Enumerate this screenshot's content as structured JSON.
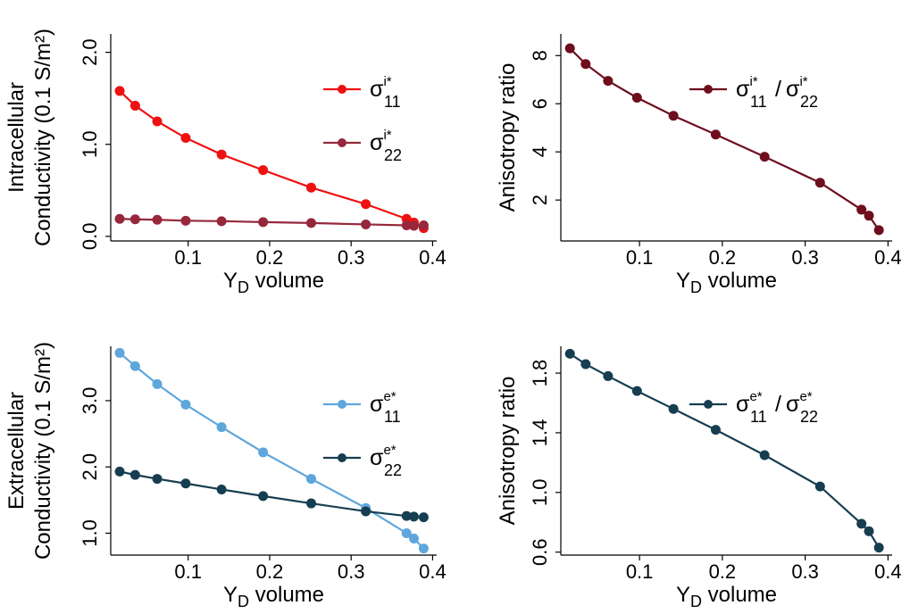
{
  "chart_data": [
    {
      "id": "panel-intracellular-conductivity",
      "type": "line",
      "xlabel": {
        "main": "Y",
        "sub": "D",
        "rest": " volume"
      },
      "ylabel": [
        "Intracellular",
        "Conductivity (0.1 S/m²)"
      ],
      "xlim": [
        0.005,
        0.405
      ],
      "ylim": [
        -0.05,
        2.2
      ],
      "xticks": [
        0.1,
        0.2,
        0.3,
        0.4
      ],
      "xtick_labels": [
        "0.1",
        "0.2",
        "0.3",
        "0.4"
      ],
      "yticks": [
        0.0,
        1.0,
        2.0
      ],
      "ytick_labels": [
        "0.0",
        "1.0",
        "2.0"
      ],
      "grid": false,
      "legend_position": "upper-right",
      "series": [
        {
          "label_base": "σ",
          "label_sup": "i*",
          "label_sub": "11",
          "color": "#ee1111",
          "x": [
            0.016,
            0.035,
            0.062,
            0.097,
            0.141,
            0.192,
            0.251,
            0.318,
            0.368,
            0.377,
            0.389
          ],
          "y": [
            1.58,
            1.42,
            1.25,
            1.07,
            0.89,
            0.72,
            0.53,
            0.35,
            0.19,
            0.15,
            0.09
          ]
        },
        {
          "label_base": "σ",
          "label_sup": "i*",
          "label_sub": "22",
          "color": "#96283c",
          "x": [
            0.016,
            0.035,
            0.062,
            0.097,
            0.141,
            0.192,
            0.251,
            0.318,
            0.368,
            0.377,
            0.389
          ],
          "y": [
            0.19,
            0.185,
            0.18,
            0.17,
            0.165,
            0.155,
            0.145,
            0.13,
            0.12,
            0.115,
            0.12
          ]
        }
      ]
    },
    {
      "id": "panel-intracellular-anisotropy",
      "type": "line",
      "xlabel": {
        "main": "Y",
        "sub": "D",
        "rest": " volume"
      },
      "ylabel": [
        "Anisotropy ratio"
      ],
      "xlim": [
        0.005,
        0.405
      ],
      "ylim": [
        0.3,
        8.9
      ],
      "xticks": [
        0.1,
        0.2,
        0.3,
        0.4
      ],
      "xtick_labels": [
        "0.1",
        "0.2",
        "0.3",
        "0.4"
      ],
      "yticks": [
        2,
        4,
        6,
        8
      ],
      "ytick_labels": [
        "2",
        "4",
        "6",
        "8"
      ],
      "grid": false,
      "legend_position": "upper-right",
      "series": [
        {
          "label_base": "σ",
          "label_sup": "i*",
          "label_sub": "11",
          "ratio_den": {
            "label_base": "σ",
            "label_sup": "i*",
            "label_sub": "22"
          },
          "color": "#6e0e1e",
          "x": [
            0.016,
            0.035,
            0.062,
            0.097,
            0.141,
            0.192,
            0.251,
            0.318,
            0.368,
            0.377,
            0.389
          ],
          "y": [
            8.3,
            7.65,
            6.95,
            6.25,
            5.5,
            4.72,
            3.8,
            2.72,
            1.6,
            1.35,
            0.75
          ]
        }
      ]
    },
    {
      "id": "panel-extracellular-conductivity",
      "type": "line",
      "xlabel": {
        "main": "Y",
        "sub": "D",
        "rest": " volume"
      },
      "ylabel": [
        "Extracellular",
        "Conductivity (0.1 S/m²)"
      ],
      "xlim": [
        0.005,
        0.405
      ],
      "ylim": [
        0.67,
        3.82
      ],
      "xticks": [
        0.1,
        0.2,
        0.3,
        0.4
      ],
      "xtick_labels": [
        "0.1",
        "0.2",
        "0.3",
        "0.4"
      ],
      "yticks": [
        1.0,
        2.0,
        3.0
      ],
      "ytick_labels": [
        "1.0",
        "2.0",
        "3.0"
      ],
      "grid": false,
      "legend_position": "right",
      "series": [
        {
          "label_base": "σ",
          "label_sup": "e*",
          "label_sub": "11",
          "color": "#5ea6dc",
          "x": [
            0.016,
            0.035,
            0.062,
            0.097,
            0.141,
            0.192,
            0.251,
            0.318,
            0.368,
            0.377,
            0.389
          ],
          "y": [
            3.72,
            3.52,
            3.25,
            2.94,
            2.6,
            2.22,
            1.82,
            1.38,
            1.0,
            0.92,
            0.77
          ]
        },
        {
          "label_base": "σ",
          "label_sup": "e*",
          "label_sub": "22",
          "color": "#163e50",
          "x": [
            0.016,
            0.035,
            0.062,
            0.097,
            0.141,
            0.192,
            0.251,
            0.318,
            0.368,
            0.377,
            0.389
          ],
          "y": [
            1.93,
            1.88,
            1.82,
            1.75,
            1.66,
            1.56,
            1.45,
            1.33,
            1.26,
            1.25,
            1.24
          ]
        }
      ]
    },
    {
      "id": "panel-extracellular-anisotropy",
      "type": "line",
      "xlabel": {
        "main": "Y",
        "sub": "D",
        "rest": " volume"
      },
      "ylabel": [
        "Anisotropy ratio"
      ],
      "xlim": [
        0.005,
        0.405
      ],
      "ylim": [
        0.58,
        1.98
      ],
      "xticks": [
        0.1,
        0.2,
        0.3,
        0.4
      ],
      "xtick_labels": [
        "0.1",
        "0.2",
        "0.3",
        "0.4"
      ],
      "yticks": [
        0.6,
        1.0,
        1.4,
        1.8
      ],
      "ytick_labels": [
        "0.6",
        "1.0",
        "1.4",
        "1.8"
      ],
      "grid": false,
      "legend_position": "upper-right",
      "series": [
        {
          "label_base": "σ",
          "label_sup": "e*",
          "label_sub": "11",
          "ratio_den": {
            "label_base": "σ",
            "label_sup": "e*",
            "label_sub": "22"
          },
          "color": "#163e50",
          "x": [
            0.016,
            0.035,
            0.062,
            0.097,
            0.141,
            0.192,
            0.251,
            0.318,
            0.368,
            0.377,
            0.389
          ],
          "y": [
            1.93,
            1.86,
            1.78,
            1.68,
            1.56,
            1.42,
            1.25,
            1.04,
            0.79,
            0.74,
            0.63
          ]
        }
      ]
    }
  ]
}
